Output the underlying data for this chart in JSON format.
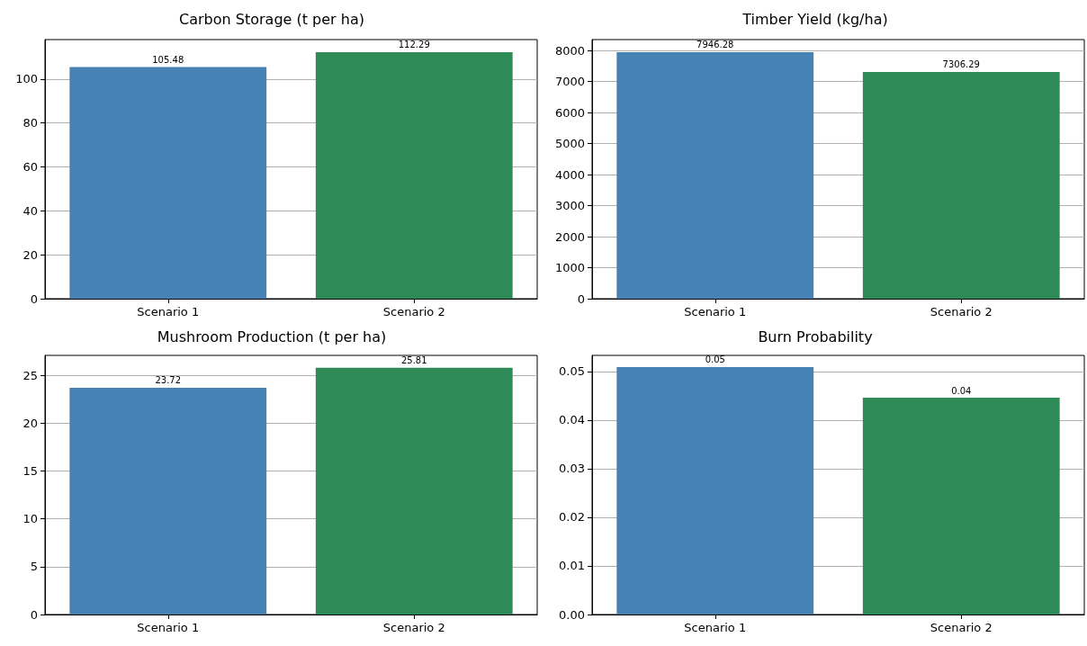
{
  "chart_data": [
    {
      "type": "bar",
      "title": "Carbon Storage (t per ha)",
      "categories": [
        "Scenario 1",
        "Scenario 2"
      ],
      "colors": [
        "#4682b4",
        "#2e8b57"
      ],
      "values": [
        105.48,
        112.29
      ],
      "data_labels": true,
      "ylim": [
        0,
        118
      ],
      "yticks": [
        0,
        20,
        40,
        60,
        80,
        100
      ],
      "grid": "y"
    },
    {
      "type": "bar",
      "title": "Timber Yield (kg/ha)",
      "categories": [
        "Scenario 1",
        "Scenario 2"
      ],
      "colors": [
        "#4682b4",
        "#2e8b57"
      ],
      "values": [
        7946.28,
        7306.29
      ],
      "data_labels": true,
      "ylim": [
        0,
        8350
      ],
      "yticks": [
        0,
        1000,
        2000,
        3000,
        4000,
        5000,
        6000,
        7000,
        8000
      ],
      "grid": "y"
    },
    {
      "type": "bar",
      "title": "Mushroom Production (t per ha)",
      "categories": [
        "Scenario 1",
        "Scenario 2"
      ],
      "colors": [
        "#4682b4",
        "#2e8b57"
      ],
      "values": [
        23.72,
        25.81
      ],
      "data_labels": true,
      "ylim": [
        0,
        27.1
      ],
      "yticks": [
        0,
        5,
        10,
        15,
        20,
        25
      ],
      "grid": "y"
    },
    {
      "type": "bar",
      "title": "Burn Probability",
      "categories": [
        "Scenario 1",
        "Scenario 2"
      ],
      "colors": [
        "#4682b4",
        "#2e8b57"
      ],
      "values": [
        0.0509,
        0.0446
      ],
      "value_labels": [
        "0.05",
        "0.04"
      ],
      "ylim": [
        0,
        0.0533
      ],
      "yticks": [
        {
          "value": 0,
          "label": "0.00"
        },
        0.01,
        0.02,
        0.03,
        0.04,
        0.05
      ],
      "grid": "y"
    }
  ]
}
